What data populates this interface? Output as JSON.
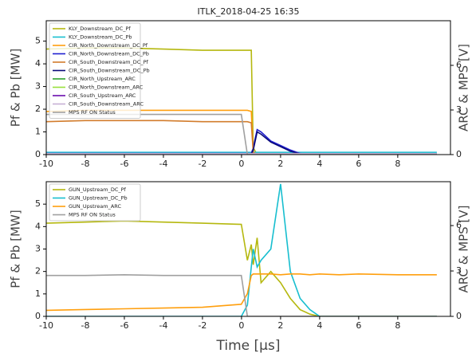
{
  "chart_data": [
    {
      "type": "line",
      "title": "ITLK_2018-04-25 16:35",
      "y_label": "Pf & Pb [MW]",
      "y2_label": "ARC & MPS [V]",
      "x": [
        -10,
        -8,
        -6,
        -4,
        -2,
        -0.01,
        0.3,
        0.5,
        0.6,
        0.8,
        1,
        1.5,
        2,
        2.5,
        3,
        3.5,
        4,
        5,
        6,
        8,
        10
      ],
      "xlim": [
        -10,
        10.7
      ],
      "xticks": [
        -10,
        -8,
        -6,
        -4,
        -2,
        0,
        2,
        4,
        6,
        8
      ],
      "ylim": [
        0,
        5.9
      ],
      "yticks": [
        0,
        1,
        2,
        3,
        4,
        5
      ],
      "y2lim": [
        0,
        9
      ],
      "y2ticks": [
        0,
        3,
        6
      ],
      "legend": "upper-left",
      "series": [
        {
          "name": "KLY_Downstream_DC_Pf",
          "color": "#b5b80f",
          "values": [
            4.65,
            4.7,
            4.7,
            4.65,
            4.6,
            4.6,
            4.6,
            4.6,
            0.3,
            0,
            0,
            0,
            0,
            0,
            0,
            0,
            0,
            0,
            0,
            0,
            0
          ]
        },
        {
          "name": "KLY_Downstream_DC_Pb",
          "color": "#17becf",
          "values": [
            0.1,
            0.1,
            0.1,
            0.1,
            0.1,
            0.1,
            0.1,
            0.1,
            0.1,
            0.1,
            0.1,
            0.1,
            0.1,
            0.1,
            0.1,
            0.1,
            0.1,
            0.1,
            0.1,
            0.1,
            0.1
          ]
        },
        {
          "name": "CIR_North_Downstream_DC_Pf",
          "color": "#ff9f0e",
          "values": [
            1.9,
            1.95,
            1.95,
            1.95,
            1.95,
            1.95,
            1.95,
            1.9,
            0.1,
            0,
            0,
            0,
            0,
            0,
            0,
            0,
            0,
            0,
            0,
            0,
            0
          ]
        },
        {
          "name": "CIR_North_Downstream_DC_Pb",
          "color": "#1f1fd0",
          "values": [
            0.05,
            0.05,
            0.05,
            0.05,
            0.05,
            0.05,
            0.05,
            0.05,
            0.3,
            1.1,
            1.0,
            0.6,
            0.4,
            0.2,
            0.05,
            0,
            0,
            0,
            0,
            0,
            0
          ]
        },
        {
          "name": "CIR_South_Downstream_DC_Pf",
          "color": "#d27c2c",
          "values": [
            1.45,
            1.5,
            1.5,
            1.5,
            1.45,
            1.45,
            1.45,
            1.4,
            0.1,
            0,
            0,
            0,
            0,
            0,
            0,
            0,
            0,
            0,
            0,
            0,
            0
          ]
        },
        {
          "name": "CIR_South_Downstream_DC_Pb",
          "color": "#0a0a7a",
          "values": [
            0.03,
            0.03,
            0.03,
            0.03,
            0.03,
            0.03,
            0.03,
            0.03,
            0.2,
            1.0,
            0.9,
            0.55,
            0.35,
            0.15,
            0.03,
            0,
            0,
            0,
            0,
            0,
            0
          ]
        },
        {
          "name": "CIR_North_Upstream_ARC",
          "color": "#2ca02c",
          "axis": "y2",
          "values": [
            0.05,
            0.05,
            0.05,
            0.05,
            0.05,
            0.05,
            0.05,
            0.05,
            0.05,
            0.05,
            0.05,
            0.05,
            0.05,
            0.05,
            0.05,
            0.05,
            0.05,
            0.05,
            0.05,
            0.05,
            0.05
          ]
        },
        {
          "name": "CIR_North_Downstream_ARC",
          "color": "#98e03c",
          "axis": "y2",
          "values": [
            0.06,
            0.06,
            0.06,
            0.06,
            0.06,
            0.06,
            0.06,
            0.06,
            0.06,
            0.06,
            0.06,
            0.06,
            0.06,
            0.06,
            0.06,
            0.06,
            0.06,
            0.06,
            0.06,
            0.06,
            0.06
          ]
        },
        {
          "name": "CIR_South_Upstream_ARC",
          "color": "#6a0dad",
          "axis": "y2",
          "values": [
            0.04,
            0.04,
            0.04,
            0.04,
            0.04,
            0.04,
            0.04,
            0.04,
            0.04,
            0.04,
            0.04,
            0.04,
            0.04,
            0.04,
            0.04,
            0.04,
            0.04,
            0.04,
            0.04,
            0.04,
            0.04
          ]
        },
        {
          "name": "CIR_South_Downstream_ARC",
          "color": "#c5b0d5",
          "axis": "y2",
          "values": [
            0.07,
            0.07,
            0.07,
            0.07,
            0.07,
            0.07,
            0.07,
            0.07,
            0.07,
            0.07,
            0.07,
            0.07,
            0.07,
            0.07,
            0.07,
            0.07,
            0.07,
            0.07,
            0.07,
            0.07,
            0.07
          ]
        },
        {
          "name": "MPS RF ON Status",
          "color": "#a0a0a0",
          "axis": "y2",
          "values": [
            2.7,
            2.7,
            2.7,
            2.7,
            2.7,
            2.7,
            0,
            0,
            0,
            0,
            0,
            0,
            0,
            0,
            0,
            0,
            0,
            0,
            0,
            0,
            0
          ]
        }
      ]
    },
    {
      "type": "line",
      "y_label": "Pf & Pb [MW]",
      "y2_label": "ARC & MPS [V]",
      "x_label": "Time [µs]",
      "x": [
        -10,
        -8,
        -6,
        -4,
        -2,
        -0.01,
        0.3,
        0.5,
        0.6,
        0.8,
        1,
        1.5,
        2,
        2.5,
        3,
        3.5,
        4,
        5,
        6,
        8,
        10
      ],
      "xlim": [
        -10,
        10.7
      ],
      "xticks": [
        -10,
        -8,
        -6,
        -4,
        -2,
        0,
        2,
        4,
        6,
        8
      ],
      "ylim": [
        0,
        6
      ],
      "yticks": [
        0,
        1,
        2,
        3,
        4,
        5
      ],
      "y2lim": [
        0,
        8.9
      ],
      "y2ticks": [
        0,
        3,
        6
      ],
      "legend": "upper-left",
      "series": [
        {
          "name": "GUN_Upstream_DC_Pf",
          "color": "#b5b80f",
          "values": [
            4.15,
            4.2,
            4.25,
            4.2,
            4.15,
            4.1,
            2.5,
            3.2,
            2.3,
            3.5,
            1.5,
            2.0,
            1.5,
            0.8,
            0.3,
            0.1,
            0,
            0,
            0,
            0,
            0
          ]
        },
        {
          "name": "GUN_Upstream_DC_Pb",
          "color": "#17becf",
          "values": [
            0,
            0,
            0,
            0,
            0,
            0,
            0.5,
            2.2,
            3.0,
            2.2,
            2.5,
            3.0,
            5.9,
            2.0,
            0.8,
            0.3,
            0,
            0,
            0,
            0,
            0
          ]
        },
        {
          "name": "GUN_Upstream_ARC",
          "color": "#ff9f0e",
          "axis": "y2",
          "values": [
            0.4,
            0.45,
            0.5,
            0.55,
            0.6,
            0.8,
            1.5,
            2.7,
            2.8,
            2.8,
            2.8,
            2.8,
            2.75,
            2.8,
            2.8,
            2.75,
            2.8,
            2.75,
            2.8,
            2.75,
            2.75
          ]
        },
        {
          "name": "MPS RF ON Status",
          "color": "#a0a0a0",
          "axis": "y2",
          "values": [
            2.7,
            2.7,
            2.75,
            2.7,
            2.7,
            2.7,
            0,
            0,
            0,
            0,
            0,
            0,
            0,
            0,
            0,
            0,
            0,
            0,
            0,
            0,
            0
          ]
        }
      ]
    }
  ]
}
